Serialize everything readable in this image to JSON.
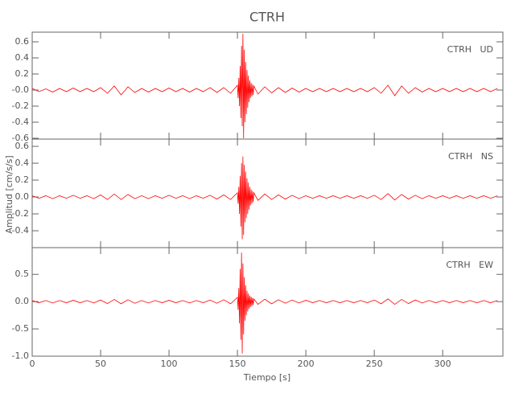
{
  "title": "CTRH",
  "ylabel": "Amplitud [cm/s/s]",
  "xlabel": "Tiempo [s]",
  "chart_data": [
    {
      "type": "line",
      "label": "CTRH   UD",
      "color": "#ff0000",
      "xlim": [
        0,
        344
      ],
      "xticks": [
        0,
        50,
        100,
        150,
        200,
        250,
        300
      ],
      "ylim": [
        -0.61,
        0.72
      ],
      "yticks": [
        -0.6,
        -0.4,
        -0.2,
        {
          "value": 0,
          "label": "-0.0"
        },
        0.2,
        0.4,
        0.6
      ],
      "x": [
        0,
        5,
        10,
        15,
        20,
        25,
        30,
        35,
        40,
        45,
        50,
        55,
        60,
        65,
        70,
        75,
        80,
        85,
        90,
        95,
        100,
        105,
        110,
        115,
        120,
        125,
        130,
        135,
        140,
        145,
        150,
        150.5,
        151,
        151.5,
        152,
        152.5,
        153,
        153.5,
        154,
        154.5,
        155,
        155.5,
        156,
        156.5,
        157,
        157.5,
        158,
        158.5,
        159,
        159.5,
        160,
        160.5,
        161,
        161.5,
        162,
        165,
        170,
        175,
        180,
        185,
        190,
        195,
        200,
        205,
        210,
        215,
        220,
        225,
        230,
        235,
        240,
        245,
        250,
        255,
        260,
        265,
        270,
        275,
        280,
        285,
        290,
        295,
        300,
        305,
        310,
        315,
        320,
        325,
        330,
        335,
        340
      ],
      "values": [
        0.02,
        -0.02,
        0.015,
        -0.025,
        0.02,
        -0.02,
        0.025,
        -0.02,
        0.02,
        -0.02,
        0.03,
        -0.04,
        0.05,
        -0.06,
        0.04,
        -0.03,
        0.02,
        -0.025,
        0.02,
        -0.02,
        0.025,
        -0.02,
        0.02,
        -0.025,
        0.02,
        -0.02,
        0.03,
        -0.03,
        0.03,
        -0.04,
        0.06,
        -0.1,
        0.15,
        -0.2,
        0.3,
        -0.35,
        0.55,
        -0.45,
        0.7,
        -0.6,
        0.5,
        -0.4,
        0.35,
        -0.3,
        0.25,
        -0.22,
        0.18,
        -0.15,
        0.12,
        -0.1,
        0.09,
        -0.08,
        0.07,
        -0.06,
        0.05,
        -0.05,
        0.04,
        -0.035,
        0.03,
        -0.03,
        0.025,
        -0.025,
        0.02,
        -0.02,
        0.02,
        -0.02,
        0.02,
        -0.02,
        0.02,
        -0.02,
        0.02,
        -0.02,
        0.03,
        -0.04,
        0.06,
        -0.07,
        0.05,
        -0.04,
        0.03,
        -0.025,
        0.02,
        -0.02,
        0.02,
        -0.02,
        0.02,
        -0.02,
        0.02,
        -0.02,
        0.02,
        -0.02,
        0.02
      ]
    },
    {
      "type": "line",
      "label": "CTRH   NS",
      "color": "#ff0000",
      "xlim": [
        0,
        344
      ],
      "xticks": [
        0,
        50,
        100,
        150,
        200,
        250,
        300
      ],
      "ylim": [
        -0.6,
        0.686
      ],
      "yticks": [
        -0.4,
        -0.2,
        {
          "value": 0,
          "label": "0.0"
        },
        0.2,
        0.4,
        0.6
      ],
      "x": [
        0,
        5,
        10,
        15,
        20,
        25,
        30,
        35,
        40,
        45,
        50,
        55,
        60,
        65,
        70,
        75,
        80,
        85,
        90,
        95,
        100,
        105,
        110,
        115,
        120,
        125,
        130,
        135,
        140,
        145,
        150,
        150.5,
        151,
        151.5,
        152,
        152.5,
        153,
        153.5,
        154,
        154.5,
        155,
        155.5,
        156,
        156.5,
        157,
        157.5,
        158,
        158.5,
        159,
        159.5,
        160,
        160.5,
        161,
        161.5,
        162,
        165,
        170,
        175,
        180,
        185,
        190,
        195,
        200,
        205,
        210,
        215,
        220,
        225,
        230,
        235,
        240,
        245,
        250,
        255,
        260,
        265,
        270,
        275,
        280,
        285,
        290,
        295,
        300,
        305,
        310,
        315,
        320,
        325,
        330,
        335,
        340
      ],
      "values": [
        0.015,
        -0.015,
        0.015,
        -0.02,
        0.015,
        -0.015,
        0.02,
        -0.015,
        0.015,
        -0.02,
        0.025,
        -0.03,
        0.035,
        -0.03,
        0.03,
        -0.02,
        0.015,
        -0.02,
        0.015,
        -0.015,
        0.02,
        -0.015,
        0.015,
        -0.02,
        0.015,
        -0.015,
        0.02,
        -0.025,
        0.025,
        -0.03,
        0.05,
        -0.08,
        0.12,
        -0.2,
        0.25,
        -0.35,
        0.4,
        -0.5,
        0.48,
        -0.45,
        0.38,
        -0.3,
        0.3,
        -0.25,
        0.22,
        -0.2,
        0.17,
        -0.15,
        0.12,
        -0.1,
        0.09,
        -0.08,
        0.07,
        -0.06,
        0.05,
        -0.04,
        0.035,
        -0.03,
        0.025,
        -0.025,
        0.02,
        -0.02,
        0.015,
        -0.015,
        0.015,
        -0.015,
        0.015,
        -0.015,
        0.015,
        -0.015,
        0.015,
        -0.015,
        0.02,
        -0.03,
        0.04,
        -0.035,
        0.03,
        -0.025,
        0.02,
        -0.02,
        0.015,
        -0.015,
        0.015,
        -0.015,
        0.015,
        -0.015,
        0.015,
        -0.015,
        0.015,
        -0.015,
        0.015
      ]
    },
    {
      "type": "line",
      "label": "CTRH   EW",
      "color": "#ff0000",
      "xlim": [
        0,
        344
      ],
      "xticks": [
        0,
        50,
        100,
        150,
        200,
        250,
        300
      ],
      "ylim": [
        -1.0,
        0.99
      ],
      "yticks": [
        {
          "value": -1,
          "label": "-1.0"
        },
        -0.5,
        {
          "value": 0,
          "label": "0.0"
        },
        0.5
      ],
      "x": [
        0,
        5,
        10,
        15,
        20,
        25,
        30,
        35,
        40,
        45,
        50,
        55,
        60,
        65,
        70,
        75,
        80,
        85,
        90,
        95,
        100,
        105,
        110,
        115,
        120,
        125,
        130,
        135,
        140,
        145,
        150,
        150.5,
        151,
        151.5,
        152,
        152.5,
        153,
        153.5,
        154,
        154.5,
        155,
        155.5,
        156,
        156.5,
        157,
        157.5,
        158,
        158.5,
        159,
        159.5,
        160,
        160.5,
        161,
        161.5,
        162,
        165,
        170,
        175,
        180,
        185,
        190,
        195,
        200,
        205,
        210,
        215,
        220,
        225,
        230,
        235,
        240,
        245,
        250,
        255,
        260,
        265,
        270,
        275,
        280,
        285,
        290,
        295,
        300,
        305,
        310,
        315,
        320,
        325,
        330,
        335,
        340
      ],
      "values": [
        0.02,
        -0.02,
        0.02,
        -0.025,
        0.02,
        -0.02,
        0.025,
        -0.02,
        0.02,
        -0.025,
        0.03,
        -0.035,
        0.04,
        -0.04,
        0.035,
        -0.03,
        0.02,
        -0.025,
        0.02,
        -0.02,
        0.025,
        -0.02,
        0.02,
        -0.025,
        0.02,
        -0.02,
        0.03,
        -0.03,
        0.035,
        -0.04,
        0.08,
        -0.15,
        0.25,
        -0.4,
        0.6,
        -0.7,
        0.9,
        -0.95,
        0.7,
        -0.6,
        0.45,
        -0.35,
        0.3,
        -0.25,
        0.2,
        -0.18,
        0.15,
        -0.13,
        0.11,
        -0.1,
        0.09,
        -0.08,
        0.07,
        -0.06,
        0.05,
        -0.05,
        0.045,
        -0.04,
        0.035,
        -0.03,
        0.03,
        -0.025,
        0.025,
        -0.02,
        0.02,
        -0.02,
        0.02,
        -0.02,
        0.02,
        -0.02,
        0.02,
        -0.02,
        0.03,
        -0.04,
        0.05,
        -0.05,
        0.04,
        -0.035,
        0.03,
        -0.025,
        0.02,
        -0.02,
        0.02,
        -0.02,
        0.02,
        -0.02,
        0.02,
        -0.02,
        0.02,
        -0.02,
        0.02
      ]
    }
  ]
}
